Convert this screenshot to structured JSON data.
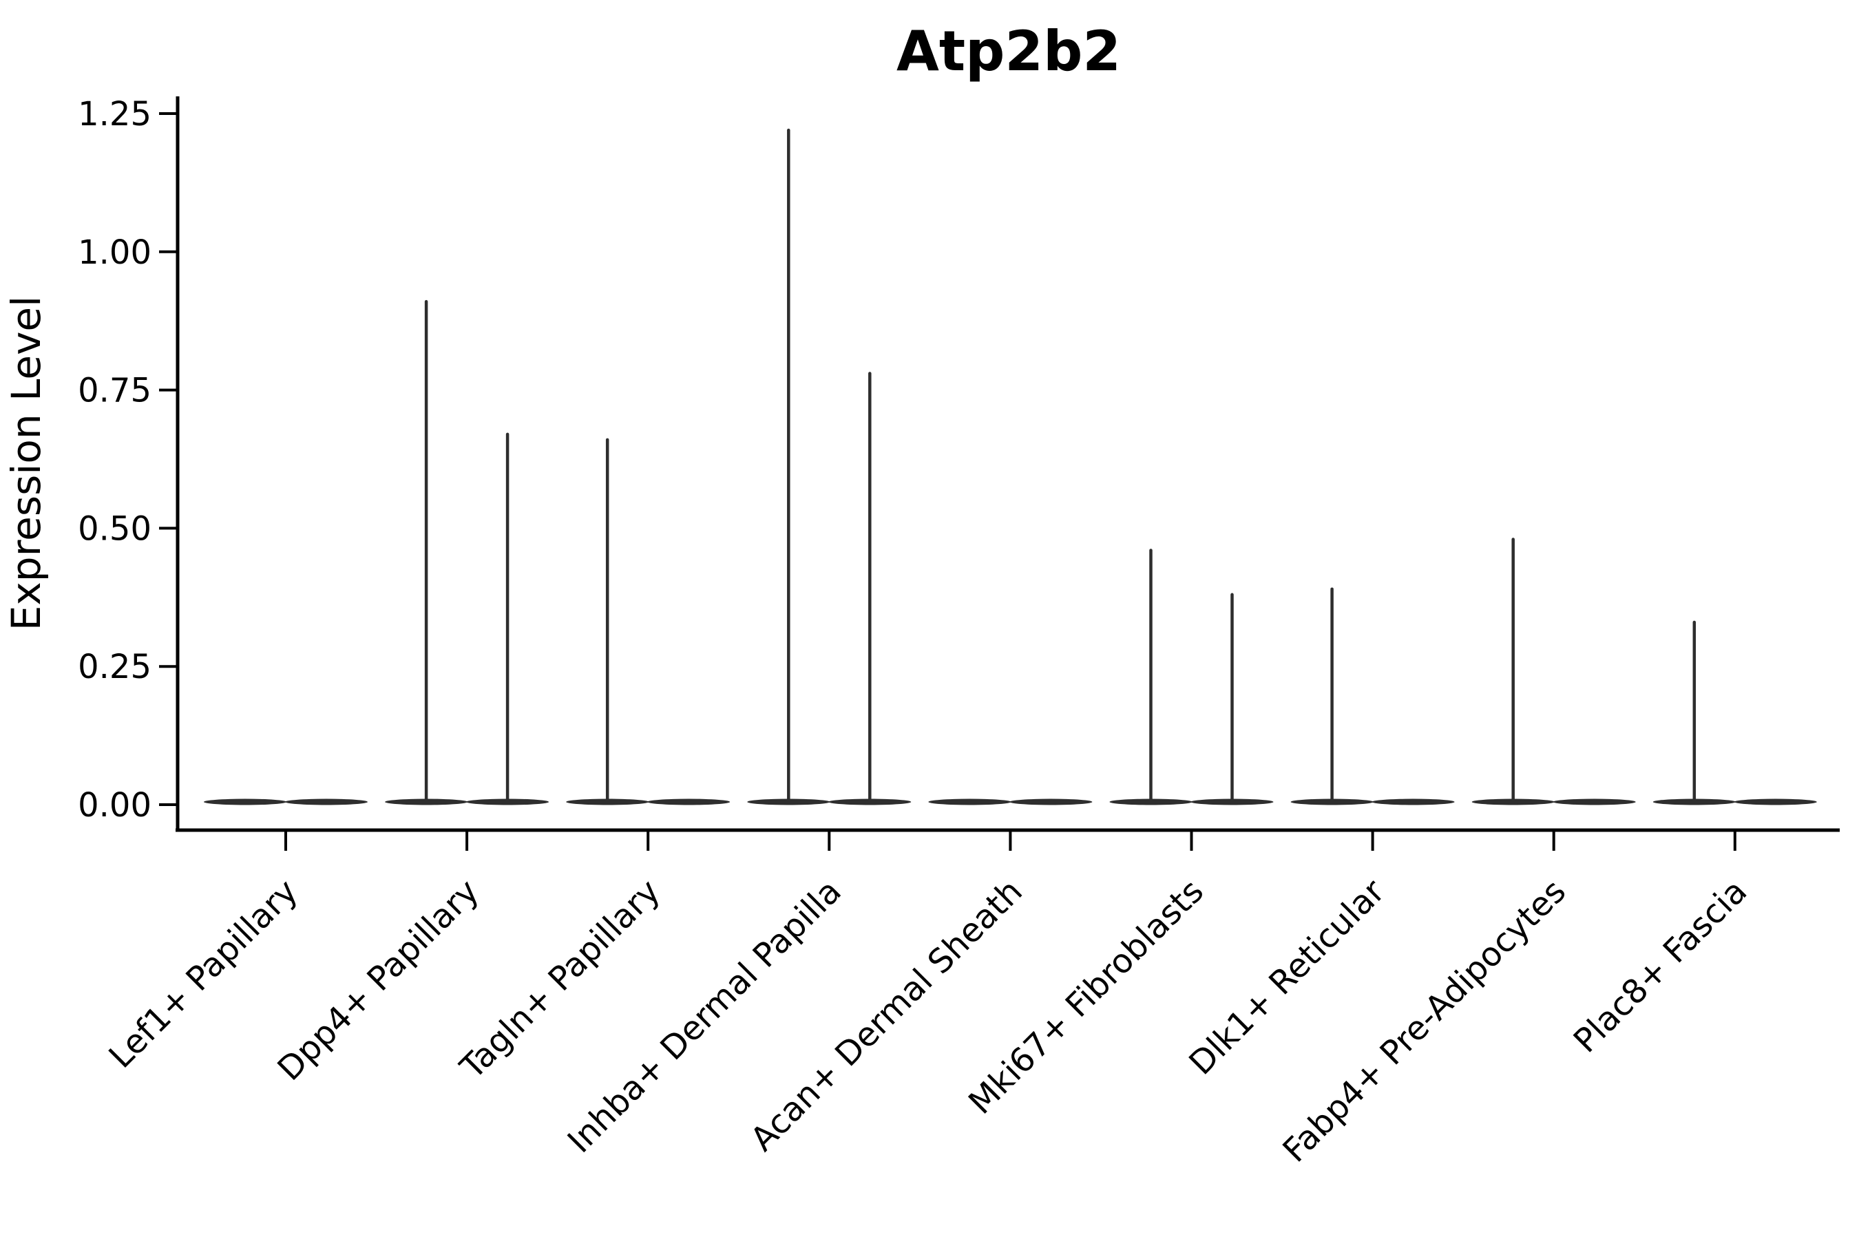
{
  "figure": {
    "background_color": "#ffffff",
    "text_color": "#000000",
    "axis_color": "#000000",
    "violin_color": "#2e2e2e"
  },
  "chart_data": {
    "type": "violin",
    "title": "Atp2b2",
    "xlabel": "",
    "ylabel": "Expression Level",
    "ylim": [
      0,
      1.25
    ],
    "grid": false,
    "legend": "none",
    "y_tick_labels": [
      "0.00",
      "0.25",
      "0.50",
      "0.75",
      "1.00",
      "1.25"
    ],
    "y_tick_values": [
      0,
      0.25,
      0.5,
      0.75,
      1.0,
      1.25
    ],
    "categories": [
      "Lef1+ Papillary",
      "Dpp4+ Papillary",
      "Tagln+ Papillary",
      "Inhba+ Dermal Papilla",
      "Acan+ Dermal Sheath",
      "Mki67+ Fibroblasts",
      "Dlk1+ Reticular",
      "Fabp4+ Pre-Adipocytes",
      "Plac8+ Fascia"
    ],
    "violins_per_category": 2,
    "series": [
      {
        "category": "Lef1+ Papillary",
        "violins": [
          {
            "position": "left",
            "max_expression": 0
          },
          {
            "position": "right",
            "max_expression": 0
          }
        ]
      },
      {
        "category": "Dpp4+ Papillary",
        "violins": [
          {
            "position": "left",
            "max_expression": 0.91
          },
          {
            "position": "right",
            "max_expression": 0.67
          }
        ]
      },
      {
        "category": "Tagln+ Papillary",
        "violins": [
          {
            "position": "left",
            "max_expression": 0.66
          },
          {
            "position": "right",
            "max_expression": 0
          }
        ]
      },
      {
        "category": "Inhba+ Dermal Papilla",
        "violins": [
          {
            "position": "left",
            "max_expression": 1.22
          },
          {
            "position": "right",
            "max_expression": 0.78
          }
        ]
      },
      {
        "category": "Acan+ Dermal Sheath",
        "violins": [
          {
            "position": "left",
            "max_expression": 0
          },
          {
            "position": "right",
            "max_expression": 0
          }
        ]
      },
      {
        "category": "Mki67+ Fibroblasts",
        "violins": [
          {
            "position": "left",
            "max_expression": 0.46
          },
          {
            "position": "right",
            "max_expression": 0.38
          }
        ]
      },
      {
        "category": "Dlk1+ Reticular",
        "violins": [
          {
            "position": "left",
            "max_expression": 0.39
          },
          {
            "position": "right",
            "max_expression": 0
          }
        ]
      },
      {
        "category": "Fabp4+ Pre-Adipocytes",
        "violins": [
          {
            "position": "left",
            "max_expression": 0.48
          },
          {
            "position": "right",
            "max_expression": 0
          }
        ]
      },
      {
        "category": "Plac8+ Fascia",
        "violins": [
          {
            "position": "left",
            "max_expression": 0.33
          },
          {
            "position": "right",
            "max_expression": 0
          }
        ]
      }
    ]
  }
}
